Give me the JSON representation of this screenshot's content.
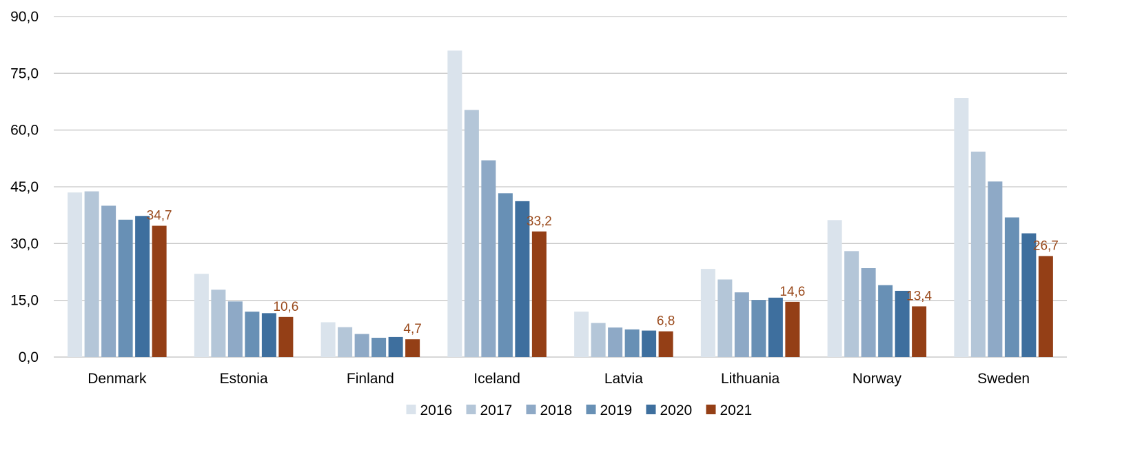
{
  "chart_data": {
    "type": "bar",
    "categories": [
      "Denmark",
      "Estonia",
      "Finland",
      "Iceland",
      "Latvia",
      "Lithuania",
      "Norway",
      "Sweden"
    ],
    "series": [
      {
        "name": "2016",
        "color": "#dae3ec",
        "values": [
          43.5,
          22.0,
          9.2,
          81.0,
          12.0,
          23.3,
          36.2,
          68.5
        ]
      },
      {
        "name": "2017",
        "color": "#b4c6d8",
        "values": [
          43.8,
          17.8,
          7.9,
          65.3,
          9.0,
          20.5,
          28.0,
          54.3
        ]
      },
      {
        "name": "2018",
        "color": "#8ea9c6",
        "values": [
          40.0,
          14.7,
          6.1,
          52.0,
          7.8,
          17.1,
          23.5,
          46.4
        ]
      },
      {
        "name": "2019",
        "color": "#6890b5",
        "values": [
          36.3,
          12.0,
          5.1,
          43.3,
          7.3,
          15.1,
          19.0,
          36.9
        ]
      },
      {
        "name": "2020",
        "color": "#3e6f9e",
        "values": [
          37.3,
          11.6,
          5.3,
          41.2,
          7.0,
          15.7,
          17.5,
          32.7
        ]
      },
      {
        "name": "2021",
        "color": "#943f16",
        "values": [
          34.7,
          10.6,
          4.7,
          33.2,
          6.8,
          14.6,
          13.4,
          26.7
        ]
      }
    ],
    "data_labels": [
      "34,7",
      "10,6",
      "4,7",
      "33,2",
      "6,8",
      "14,6",
      "13,4",
      "26,7"
    ],
    "y_ticks": [
      "0,0",
      "15,0",
      "30,0",
      "45,0",
      "60,0",
      "75,0",
      "90,0"
    ],
    "ylim": [
      0,
      90
    ],
    "y_step": 15,
    "grid": true,
    "legend_position": "bottom-center",
    "label_color": "#9a4a1c",
    "grid_color": "#c8c8c8"
  }
}
